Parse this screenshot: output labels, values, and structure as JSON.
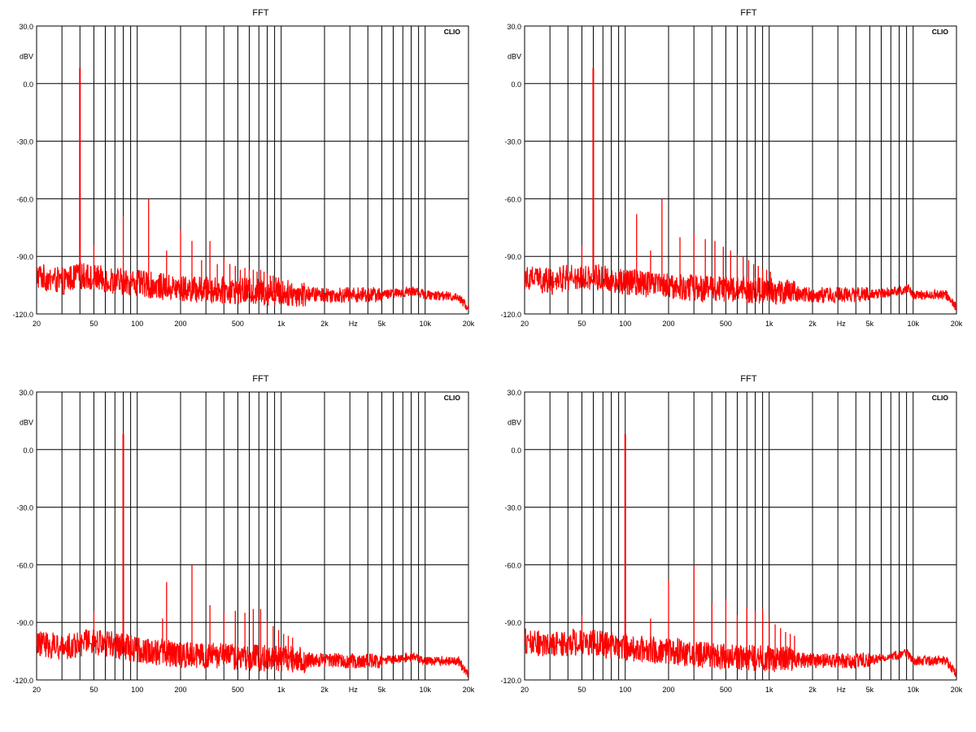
{
  "common": {
    "title": "FFT",
    "brand": "CLIO",
    "ylabel": "dBV",
    "y_ticks": [
      "30.0",
      "0.0",
      "-30.0",
      "-60.0",
      "-90.0",
      "-120.0"
    ],
    "y_tick_values": [
      30,
      0,
      -30,
      -60,
      -90,
      -120
    ],
    "x_ticks": [
      "20",
      "50",
      "100",
      "200",
      "500",
      "1k",
      "2k",
      "Hz",
      "5k",
      "10k",
      "20k"
    ],
    "x_tick_values": [
      20,
      50,
      100,
      200,
      500,
      1000,
      2000,
      3162,
      5000,
      10000,
      20000
    ],
    "grid_freqs": [
      20,
      30,
      40,
      50,
      60,
      70,
      80,
      90,
      100,
      200,
      300,
      400,
      500,
      600,
      700,
      800,
      900,
      1000,
      2000,
      3000,
      4000,
      5000,
      6000,
      7000,
      8000,
      9000,
      10000,
      20000
    ],
    "line_color": "#ff0000",
    "grid_color": "#000000"
  },
  "chart_data": [
    {
      "type": "line",
      "title": "FFT",
      "ylabel": "dBV",
      "xscale": "log",
      "xlim": [
        20,
        20000
      ],
      "ylim": [
        -120,
        30
      ],
      "fundamental_hz": 40,
      "peaks": [
        [
          40,
          8
        ],
        [
          50,
          -84
        ],
        [
          80,
          -69
        ],
        [
          120,
          -60
        ],
        [
          160,
          -87
        ],
        [
          200,
          -76
        ],
        [
          240,
          -82
        ],
        [
          280,
          -92
        ],
        [
          320,
          -82
        ],
        [
          360,
          -94
        ],
        [
          400,
          -91
        ],
        [
          440,
          -94
        ],
        [
          480,
          -95
        ],
        [
          520,
          -97
        ],
        [
          560,
          -96
        ],
        [
          600,
          -97
        ],
        [
          640,
          -97
        ],
        [
          680,
          -98
        ],
        [
          720,
          -97
        ],
        [
          760,
          -98
        ],
        [
          800,
          -99
        ],
        [
          840,
          -100
        ],
        [
          880,
          -100
        ],
        [
          920,
          -101
        ],
        [
          960,
          -101
        ],
        [
          1000,
          -102
        ]
      ],
      "noise_floor": [
        [
          20,
          -100
        ],
        [
          30,
          -103
        ],
        [
          40,
          -100
        ],
        [
          60,
          -102
        ],
        [
          100,
          -104
        ],
        [
          200,
          -107
        ],
        [
          500,
          -108
        ],
        [
          1000,
          -109
        ],
        [
          2000,
          -110
        ],
        [
          5000,
          -110
        ],
        [
          8500,
          -108
        ],
        [
          10000,
          -110
        ],
        [
          17000,
          -111
        ],
        [
          20000,
          -117
        ]
      ]
    },
    {
      "type": "line",
      "title": "FFT",
      "ylabel": "dBV",
      "xscale": "log",
      "xlim": [
        20,
        20000
      ],
      "ylim": [
        -120,
        30
      ],
      "fundamental_hz": 60,
      "peaks": [
        [
          50,
          -84
        ],
        [
          60,
          8
        ],
        [
          120,
          -68
        ],
        [
          180,
          -60
        ],
        [
          150,
          -87
        ],
        [
          240,
          -80
        ],
        [
          300,
          -78
        ],
        [
          360,
          -81
        ],
        [
          420,
          -82
        ],
        [
          480,
          -85
        ],
        [
          540,
          -87
        ],
        [
          600,
          -89
        ],
        [
          660,
          -90
        ],
        [
          720,
          -92
        ],
        [
          780,
          -94
        ],
        [
          840,
          -95
        ],
        [
          900,
          -97
        ],
        [
          960,
          -97
        ],
        [
          1020,
          -98
        ]
      ],
      "noise_floor": [
        [
          20,
          -100
        ],
        [
          30,
          -103
        ],
        [
          50,
          -100
        ],
        [
          100,
          -103
        ],
        [
          200,
          -106
        ],
        [
          500,
          -107
        ],
        [
          1000,
          -108
        ],
        [
          2000,
          -110
        ],
        [
          5000,
          -110
        ],
        [
          9500,
          -107
        ],
        [
          10000,
          -110
        ],
        [
          17000,
          -110
        ],
        [
          20000,
          -117
        ]
      ]
    },
    {
      "type": "line",
      "title": "FFT",
      "ylabel": "dBV",
      "xscale": "log",
      "xlim": [
        20,
        20000
      ],
      "ylim": [
        -120,
        30
      ],
      "fundamental_hz": 80,
      "peaks": [
        [
          50,
          -84
        ],
        [
          80,
          8
        ],
        [
          160,
          -69
        ],
        [
          150,
          -88
        ],
        [
          240,
          -60
        ],
        [
          320,
          -81
        ],
        [
          400,
          -85
        ],
        [
          480,
          -84
        ],
        [
          560,
          -85
        ],
        [
          640,
          -83
        ],
        [
          720,
          -83
        ],
        [
          800,
          -89
        ],
        [
          880,
          -92
        ],
        [
          960,
          -94
        ],
        [
          1040,
          -96
        ],
        [
          1120,
          -97
        ],
        [
          1200,
          -98
        ]
      ],
      "noise_floor": [
        [
          20,
          -100
        ],
        [
          30,
          -103
        ],
        [
          50,
          -100
        ],
        [
          100,
          -104
        ],
        [
          200,
          -107
        ],
        [
          500,
          -108
        ],
        [
          1000,
          -109
        ],
        [
          2000,
          -110
        ],
        [
          5000,
          -110
        ],
        [
          8500,
          -108
        ],
        [
          10000,
          -110
        ],
        [
          17000,
          -110
        ],
        [
          20000,
          -117
        ]
      ]
    },
    {
      "type": "line",
      "title": "FFT",
      "ylabel": "dBV",
      "xscale": "log",
      "xlim": [
        20,
        20000
      ],
      "ylim": [
        -120,
        30
      ],
      "fundamental_hz": 100,
      "peaks": [
        [
          50,
          -86
        ],
        [
          100,
          8
        ],
        [
          150,
          -88
        ],
        [
          200,
          -68
        ],
        [
          300,
          -60
        ],
        [
          400,
          -80
        ],
        [
          500,
          -78
        ],
        [
          600,
          -86
        ],
        [
          700,
          -82
        ],
        [
          800,
          -84
        ],
        [
          900,
          -83
        ],
        [
          1000,
          -88
        ],
        [
          1100,
          -91
        ],
        [
          1200,
          -93
        ],
        [
          1300,
          -95
        ],
        [
          1400,
          -96
        ],
        [
          1500,
          -97
        ]
      ],
      "noise_floor": [
        [
          20,
          -100
        ],
        [
          30,
          -102
        ],
        [
          50,
          -100
        ],
        [
          100,
          -103
        ],
        [
          200,
          -105
        ],
        [
          500,
          -108
        ],
        [
          1000,
          -109
        ],
        [
          2000,
          -110
        ],
        [
          5000,
          -110
        ],
        [
          9000,
          -106
        ],
        [
          10000,
          -110
        ],
        [
          17000,
          -110
        ],
        [
          20000,
          -117
        ]
      ]
    }
  ]
}
